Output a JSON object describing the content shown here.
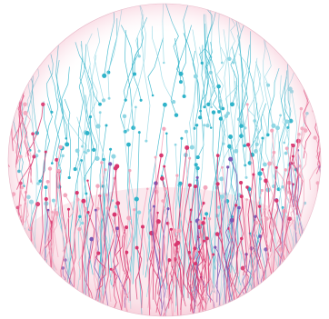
{
  "image": {
    "subject": "circuit-sphere",
    "palette": {
      "background": "#ffffff",
      "cyan": "#2fb3c9",
      "cyan_light": "#8fd6e3",
      "magenta": "#d8376f",
      "pink": "#f2a7bd",
      "pink_light": "#f7cfda",
      "purple": "#7a5ab5"
    }
  }
}
